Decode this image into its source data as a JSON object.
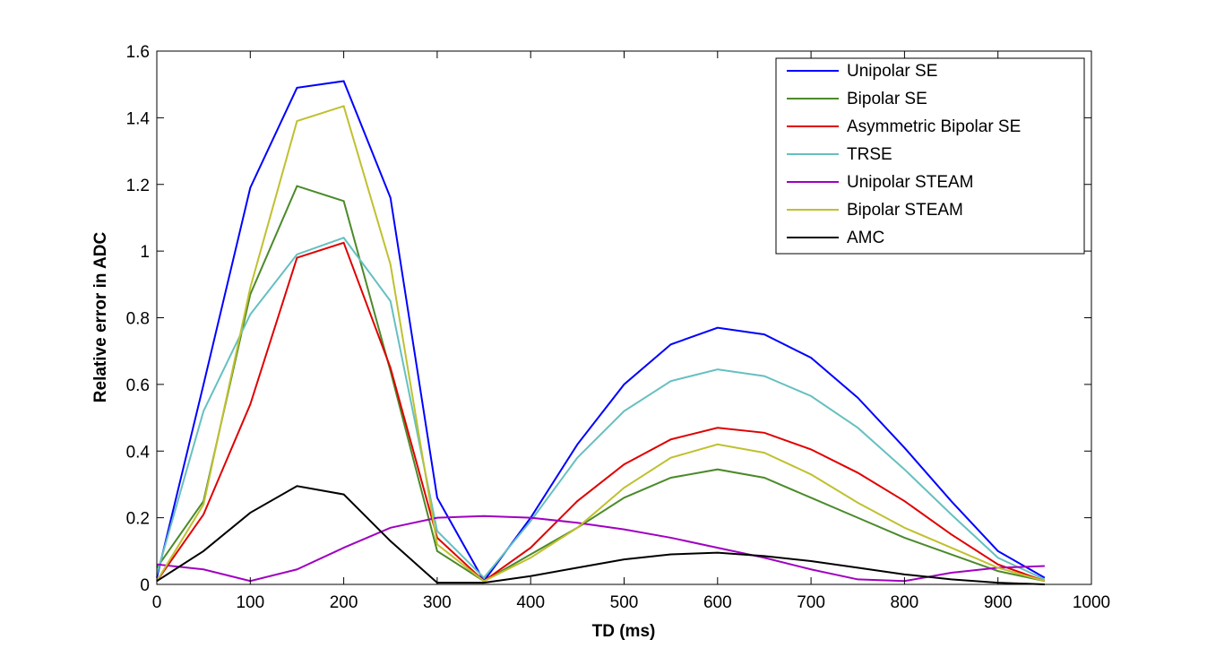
{
  "chart_data": {
    "type": "line",
    "title": "",
    "xlabel": "TD (ms)",
    "ylabel": "Relative error in ADC",
    "xlim": [
      0,
      1000
    ],
    "ylim": [
      0,
      1.6
    ],
    "xticks": [
      0,
      100,
      200,
      300,
      400,
      500,
      600,
      700,
      800,
      900,
      1000
    ],
    "yticks": [
      0,
      0.2,
      0.4,
      0.6,
      0.8,
      1,
      1.2,
      1.4,
      1.6
    ],
    "grid": false,
    "legend_placement": "top-right",
    "x": [
      0,
      50,
      100,
      150,
      200,
      250,
      300,
      350,
      400,
      450,
      500,
      550,
      600,
      650,
      700,
      750,
      800,
      850,
      900,
      950
    ],
    "series": [
      {
        "name": "Unipolar SE",
        "color": "#0000ff",
        "values": [
          0.02,
          0.6,
          1.19,
          1.49,
          1.51,
          1.16,
          0.26,
          0.01,
          0.2,
          0.42,
          0.6,
          0.72,
          0.77,
          0.75,
          0.68,
          0.56,
          0.41,
          0.25,
          0.1,
          0.02
        ]
      },
      {
        "name": "Bipolar SE",
        "color": "#4b8a2a",
        "values": [
          0.05,
          0.25,
          0.87,
          1.195,
          1.15,
          0.64,
          0.1,
          0.01,
          0.09,
          0.17,
          0.26,
          0.32,
          0.345,
          0.32,
          0.26,
          0.2,
          0.14,
          0.09,
          0.04,
          0.01
        ]
      },
      {
        "name": "Asymmetric Bipolar SE",
        "color": "#e00000",
        "values": [
          0.01,
          0.21,
          0.54,
          0.98,
          1.025,
          0.65,
          0.14,
          0.01,
          0.11,
          0.25,
          0.36,
          0.435,
          0.47,
          0.455,
          0.405,
          0.335,
          0.25,
          0.15,
          0.06,
          0.01
        ]
      },
      {
        "name": "TRSE",
        "color": "#66c0c0",
        "values": [
          0.03,
          0.52,
          0.81,
          0.99,
          1.04,
          0.85,
          0.16,
          0.02,
          0.19,
          0.38,
          0.52,
          0.61,
          0.645,
          0.625,
          0.565,
          0.47,
          0.345,
          0.21,
          0.08,
          0.015
        ]
      },
      {
        "name": "Unipolar STEAM",
        "color": "#a000c0",
        "values": [
          0.06,
          0.045,
          0.01,
          0.045,
          0.11,
          0.17,
          0.2,
          0.205,
          0.2,
          0.185,
          0.165,
          0.14,
          0.11,
          0.08,
          0.045,
          0.015,
          0.01,
          0.035,
          0.05,
          0.055
        ]
      },
      {
        "name": "Bipolar STEAM",
        "color": "#c0c030",
        "values": [
          0.01,
          0.24,
          0.89,
          1.39,
          1.435,
          0.96,
          0.12,
          0.01,
          0.08,
          0.17,
          0.29,
          0.38,
          0.42,
          0.395,
          0.33,
          0.245,
          0.17,
          0.11,
          0.05,
          0.01
        ]
      },
      {
        "name": "AMC",
        "color": "#000000",
        "values": [
          0.01,
          0.1,
          0.215,
          0.295,
          0.27,
          0.13,
          0.005,
          0.005,
          0.025,
          0.05,
          0.075,
          0.09,
          0.095,
          0.085,
          0.07,
          0.05,
          0.03,
          0.015,
          0.005,
          0.0
        ]
      }
    ]
  }
}
